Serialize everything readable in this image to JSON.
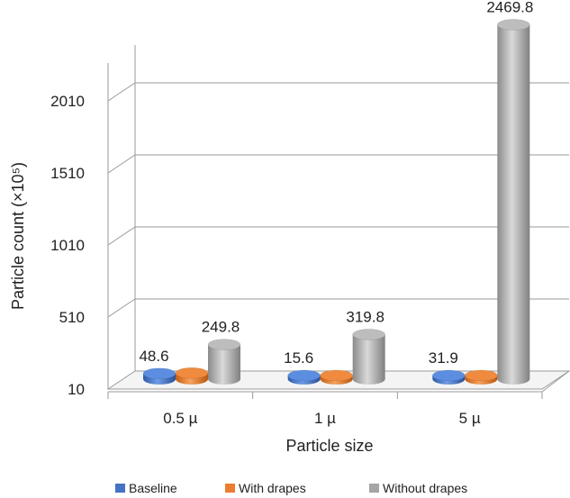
{
  "chart_data": {
    "type": "bar",
    "title": "",
    "xlabel": "Particle size",
    "ylabel": "Particle count (×10⁵)",
    "categories": [
      "0.5 µ",
      "1 µ",
      "5 µ"
    ],
    "series": [
      {
        "name": "Baseline",
        "values": [
          48.6,
          15.6,
          31.9
        ],
        "labels": [
          "48.6",
          "15.6",
          "31.9"
        ],
        "color": "#4472C4"
      },
      {
        "name": "With drapes",
        "values": [
          52.0,
          18.0,
          34.0
        ],
        "labels": [
          "",
          "",
          ""
        ],
        "color": "#ED7D31"
      },
      {
        "name": "Without drapes",
        "values": [
          249.8,
          319.8,
          2469.8
        ],
        "labels": [
          "249.8",
          "319.8",
          "2469.8"
        ],
        "color": "#A5A5A5"
      }
    ],
    "yticks": [
      10,
      510,
      1010,
      1510,
      2010
    ],
    "ylim": [
      10,
      2469.8
    ],
    "grid": true,
    "legend_position": "bottom",
    "style": "3d-cylinder"
  }
}
